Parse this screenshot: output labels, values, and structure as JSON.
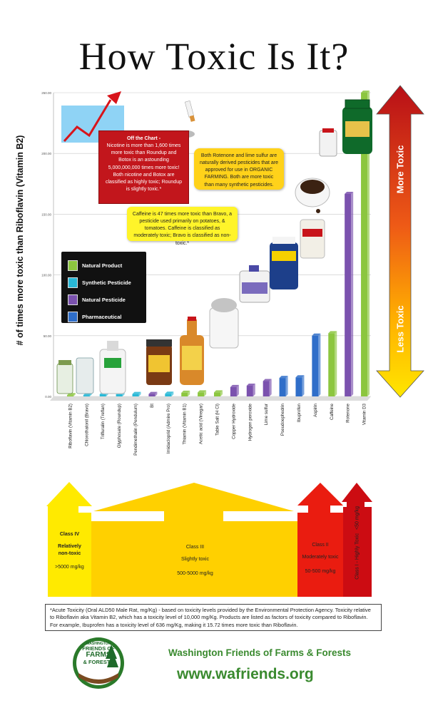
{
  "title": "How Toxic Is It?",
  "y_axis_label": "# of times more toxic than Riboflavin (Vitamin B2)",
  "colors": {
    "natural_product": "#8cc63f",
    "synthetic_pesticide": "#29b8d6",
    "natural_pesticide": "#7b52ae",
    "pharmaceutical": "#2f6ec9",
    "more_toxic": "#c8141a",
    "less_toxic": "#ffe600"
  },
  "legend": [
    {
      "label": "Natural Product",
      "color": "#8cc63f"
    },
    {
      "label": "Synthetic Pesticide",
      "color": "#29b8d6"
    },
    {
      "label": "Natural Pesticide",
      "color": "#7b52ae"
    },
    {
      "label": "Pharmaceutical",
      "color": "#2f6ec9"
    }
  ],
  "callouts": {
    "off_chart_title": "Off the Chart -",
    "off_chart_body": "Nicotine is more than 1,600 times more toxic than Roundup and Botox is an astounding 5,000,000,000 times more toxic! Both nicotine and Botox are classified as highly toxic; Roundup is slightly toxic.*",
    "rotenone_note": "Both Rotenone and lime sulfur are naturally derived pesticides that are approved for use in ORGANIC FARMING. Both are more toxic than many synthetic pesticides.",
    "caffeine_note": "Caffeine is 47 times more toxic than Bravo, a pesticide used primarily on potatoes, & tomatoes. Caffeine is classified as moderately toxic; Bravo is classified as non-toxic.*"
  },
  "toxicity_arrow": {
    "top_label": "More Toxic",
    "bottom_label": "Less Toxic"
  },
  "chart_data": {
    "type": "bar",
    "ylabel": "# of times more toxic than Riboflavin (Vitamin B2)",
    "ylim": [
      0,
      250
    ],
    "yticks": [
      "0.00",
      "50.00",
      "100.00",
      "150.00",
      "200.00",
      "250.00"
    ],
    "categories": [
      "Riboflavin (Vitamin B2)",
      "Chlorothalonil (Bravo)",
      "Trifluralin (Treflan)",
      "Glyphosate (Roundup)",
      "Pendimethalin (Pendulum)",
      "Bt",
      "Imidacloprid (Admire Pro)",
      "Thiamin (Vitamin B1)",
      "Acetic acid (Vinegar)",
      "Table Salt (H Cl)",
      "Copper Hydroxide",
      "Hydrogen peroxide",
      "Lime sulfur",
      "Pseudoephedrin",
      "Ibuprofen",
      "Aspirin",
      "Caffeine",
      "Rotenone",
      "Vitamin D3"
    ],
    "values": [
      1.0,
      1.1,
      1.8,
      1.8,
      2.0,
      2.0,
      2.2,
      3.0,
      3.3,
      3.3,
      7.7,
      8.8,
      12.6,
      15.2,
      15.72,
      50.0,
      52.0,
      166.7,
      250.0
    ],
    "groups": [
      "natural_product",
      "synthetic_pesticide",
      "synthetic_pesticide",
      "synthetic_pesticide",
      "synthetic_pesticide",
      "natural_pesticide",
      "synthetic_pesticide",
      "natural_product",
      "natural_product",
      "natural_product",
      "natural_pesticide",
      "natural_pesticide",
      "natural_pesticide",
      "pharmaceutical",
      "pharmaceutical",
      "pharmaceutical",
      "natural_product",
      "natural_pesticide",
      "natural_product"
    ],
    "grid": true,
    "legend_position": "left-middle"
  },
  "classes": [
    {
      "name": "Class IV",
      "desc": "Relatively non-toxic",
      "range": ">5000 mg/kg"
    },
    {
      "name": "Class III",
      "desc": "Slightly toxic",
      "range": "500-5000 mg/kg"
    },
    {
      "name": "Class II",
      "desc": "Moderately toxic",
      "range": "50-500 mg/kg"
    },
    {
      "name": "Class I - Highly Toxic",
      "desc": "",
      "range": "<50 mg/kg"
    }
  ],
  "footnote": "*Acute Toxicity (Oral ALD50 Male Rat, mg/Kg) - based on toxicity levels provided by the Environmental Protection Agency. Toxicity relative to Riboflavin aka Vitamin B2, which has a toxicity level of 10,000 mg/Kg. Products are listed as factors of toxicity compared to Riboflavin. For example, Ibuprofen has a toxicity level of 636 mg/Kg, making it 15.72 times more toxic than Riboflavin.",
  "logo_text": {
    "line1": "WASHINGTON",
    "line2": "FRIENDS OF",
    "line3": "FARMS",
    "line4": "& FORESTS"
  },
  "org_name": "Washington Friends of Farms & Forests",
  "website": "www.wafriends.org"
}
